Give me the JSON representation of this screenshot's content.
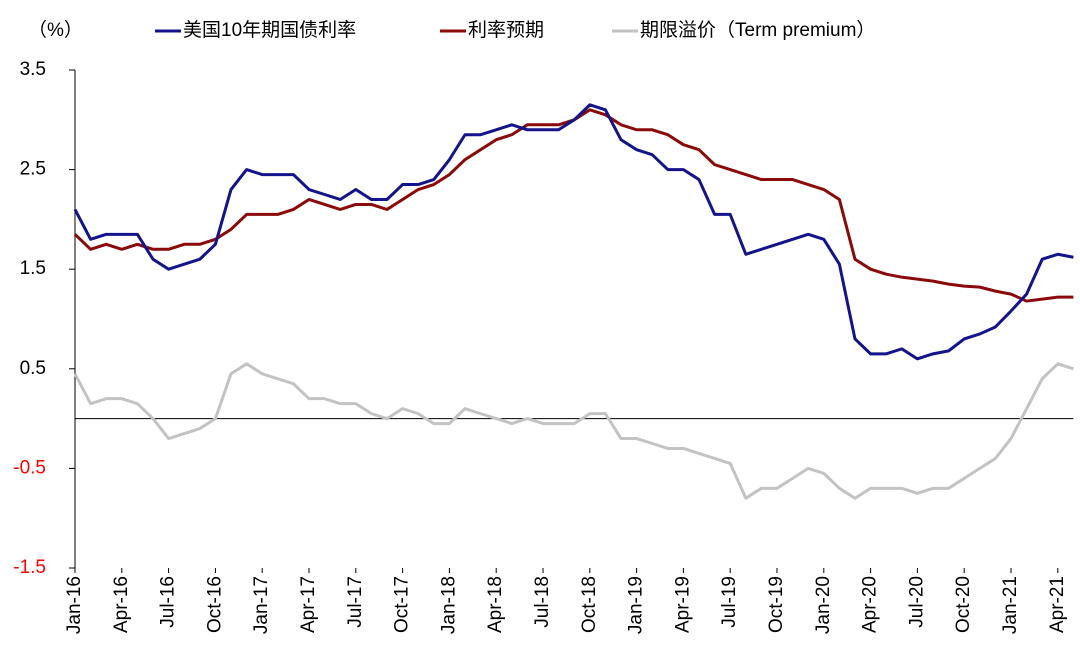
{
  "chart_data": {
    "type": "line",
    "y_label": "（%）",
    "categories": [
      "Jan-16",
      null,
      null,
      "Apr-16",
      null,
      null,
      "Jul-16",
      null,
      null,
      "Oct-16",
      null,
      null,
      "Jan-17",
      null,
      null,
      "Apr-17",
      null,
      null,
      "Jul-17",
      null,
      null,
      "Oct-17",
      null,
      null,
      "Jan-18",
      null,
      null,
      "Apr-18",
      null,
      null,
      "Jul-18",
      null,
      null,
      "Oct-18",
      null,
      null,
      "Jan-19",
      null,
      null,
      "Apr-19",
      null,
      null,
      "Jul-19",
      null,
      null,
      "Oct-19",
      null,
      null,
      "Jan-20",
      null,
      null,
      "Apr-20",
      null,
      null,
      "Jul-20",
      null,
      null,
      "Oct-20",
      null,
      null,
      "Jan-21",
      null,
      null,
      "Apr-21",
      null
    ],
    "series": [
      {
        "name": "美国10年期国债利率",
        "color": "#14148c",
        "values": [
          2.1,
          1.8,
          1.85,
          1.85,
          1.85,
          1.6,
          1.5,
          1.55,
          1.6,
          1.75,
          2.3,
          2.5,
          2.45,
          2.45,
          2.45,
          2.3,
          2.25,
          2.2,
          2.3,
          2.2,
          2.2,
          2.35,
          2.35,
          2.4,
          2.6,
          2.85,
          2.85,
          2.9,
          2.95,
          2.9,
          2.9,
          2.9,
          3.0,
          3.15,
          3.1,
          2.8,
          2.7,
          2.65,
          2.5,
          2.5,
          2.4,
          2.05,
          2.05,
          1.65,
          1.7,
          1.75,
          1.8,
          1.85,
          1.8,
          1.55,
          0.8,
          0.65,
          0.65,
          0.7,
          0.6,
          0.65,
          0.68,
          0.8,
          0.85,
          0.92,
          1.08,
          1.25,
          1.6,
          1.65,
          1.62
        ]
      },
      {
        "name": "利率预期",
        "color": "#8b0a0a",
        "values": [
          1.85,
          1.7,
          1.75,
          1.7,
          1.75,
          1.7,
          1.7,
          1.75,
          1.75,
          1.8,
          1.9,
          2.05,
          2.05,
          2.05,
          2.1,
          2.2,
          2.15,
          2.1,
          2.15,
          2.15,
          2.1,
          2.2,
          2.3,
          2.35,
          2.45,
          2.6,
          2.7,
          2.8,
          2.85,
          2.95,
          2.95,
          2.95,
          3.0,
          3.1,
          3.05,
          2.95,
          2.9,
          2.9,
          2.85,
          2.75,
          2.7,
          2.55,
          2.5,
          2.45,
          2.4,
          2.4,
          2.4,
          2.35,
          2.3,
          2.2,
          1.6,
          1.5,
          1.45,
          1.42,
          1.4,
          1.38,
          1.35,
          1.33,
          1.32,
          1.28,
          1.25,
          1.18,
          1.2,
          1.22,
          1.22
        ]
      },
      {
        "name": "期限溢价（Term premium）",
        "color": "#c3c3c3",
        "values": [
          0.45,
          0.15,
          0.2,
          0.2,
          0.15,
          0.0,
          -0.2,
          -0.15,
          -0.1,
          0.0,
          0.45,
          0.55,
          0.45,
          0.4,
          0.35,
          0.2,
          0.2,
          0.15,
          0.15,
          0.05,
          0.0,
          0.1,
          0.05,
          -0.05,
          -0.05,
          0.1,
          0.05,
          0.0,
          -0.05,
          0.0,
          -0.05,
          -0.05,
          -0.05,
          0.05,
          0.05,
          -0.2,
          -0.2,
          -0.25,
          -0.3,
          -0.3,
          -0.35,
          -0.4,
          -0.45,
          -0.8,
          -0.7,
          -0.7,
          -0.6,
          -0.5,
          -0.55,
          -0.7,
          -0.8,
          -0.7,
          -0.7,
          -0.7,
          -0.75,
          -0.7,
          -0.7,
          -0.6,
          -0.5,
          -0.4,
          -0.2,
          0.1,
          0.4,
          0.55,
          0.5
        ]
      }
    ],
    "ylim": [
      -1.5,
      3.5
    ],
    "yticks": [
      -1.5,
      -0.5,
      0.5,
      1.5,
      2.5,
      3.5
    ],
    "negative_tick_color": "#ff0000"
  }
}
